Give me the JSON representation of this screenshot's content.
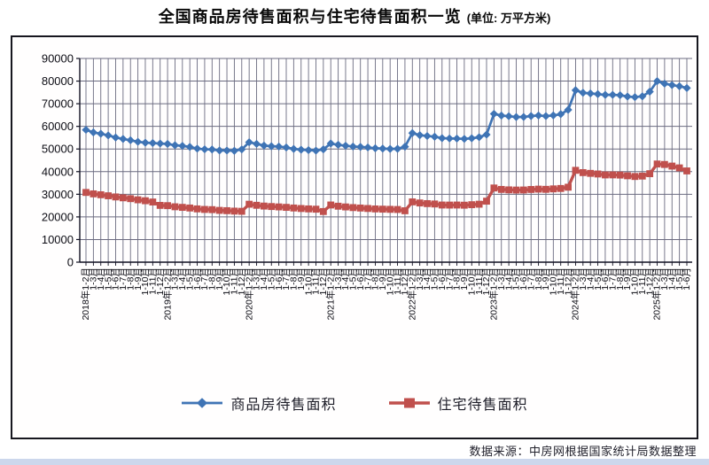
{
  "title": {
    "main": "全国商品房待售面积与住宅待售面积一览",
    "unit": "(单位: 万平方米)"
  },
  "source": "数据来源：中房网根据国家统计局数据整理",
  "colors": {
    "series1": "#3f74b5",
    "series2": "#c0504d",
    "grid": "#6b6b80",
    "axis": "#111122",
    "frame": "#17171f",
    "bottom_strip": "#ccd7ec"
  },
  "chart_data": {
    "type": "line",
    "title": "全国商品房待售面积与住宅待售面积一览",
    "unit_label": "万平方米",
    "ylim": [
      0,
      90000
    ],
    "ytick_step": 10000,
    "ytick_labels": [
      "0",
      "10000",
      "20000",
      "30000",
      "40000",
      "50000",
      "60000",
      "70000",
      "80000",
      "90000"
    ],
    "grid": true,
    "legend_position": "bottom",
    "x_labels": [
      "2018年1-2月",
      "1-3月",
      "1-4月",
      "1-5月",
      "1-6月",
      "1-7月",
      "1-8月",
      "1-9月",
      "1-10月",
      "1-11月",
      "1-12月",
      "2019年1-2月",
      "1-3月",
      "1-4月",
      "1-5月",
      "1-6月",
      "1-7月",
      "1-8月",
      "1-9月",
      "1-10月",
      "1-11月",
      "1-12月",
      "2020年1-2月",
      "1-3月",
      "1-4月",
      "1-5月",
      "1-6月",
      "1-7月",
      "1-8月",
      "1-9月",
      "1-10月",
      "1-11月",
      "1-12月",
      "2021年1-2月",
      "1-3月",
      "1-4月",
      "1-5月",
      "1-6月",
      "1-7月",
      "1-8月",
      "1-9月",
      "1-10月",
      "1-11月",
      "1-12月",
      "2022年1-2月",
      "1-3月",
      "1-4月",
      "1-5月",
      "1-6月",
      "1-7月",
      "1-8月",
      "1-9月",
      "1-10月",
      "1-11月",
      "1-12月",
      "2023年1-2月",
      "1-3月",
      "1-4月",
      "1-5月",
      "1-6月",
      "1-7月",
      "1-8月",
      "1-9月",
      "1-10月",
      "1-11月",
      "1-12月",
      "2024年1-2月",
      "1-3月",
      "1-4月",
      "1-5月",
      "1-6月",
      "1-7月",
      "1-8月",
      "1-9月",
      "1-10月",
      "1-11月",
      "1-12月",
      "2025年1-2月",
      "1-3月",
      "1-4月",
      "1-5月",
      "1-6月"
    ],
    "series": [
      {
        "name": "商品房待售面积",
        "color": "#3f74b5",
        "marker": "diamond",
        "values": [
          58468,
          57329,
          56726,
          56010,
          55083,
          54428,
          53873,
          53191,
          52789,
          52627,
          52414,
          52251,
          51646,
          51380,
          50928,
          50162,
          49876,
          49784,
          49346,
          49323,
          49221,
          49821,
          52983,
          52255,
          51512,
          51225,
          51083,
          50682,
          50052,
          49707,
          49492,
          49287,
          49850,
          52425,
          51835,
          51440,
          51087,
          50917,
          50691,
          50320,
          50191,
          50049,
          50092,
          51023,
          57026,
          56113,
          55743,
          55433,
          54784,
          54655,
          54605,
          54467,
          54734,
          55203,
          56366,
          65528,
          64770,
          64487,
          64120,
          64159,
          64564,
          64795,
          64537,
          64835,
          65385,
          67295,
          75969,
          74833,
          74553,
          74256,
          73894,
          73926,
          73783,
          73177,
          72909,
          73286,
          75327,
          79968,
          78869,
          78241,
          77726,
          76948
        ]
      },
      {
        "name": "住宅待售面积",
        "color": "#c0504d",
        "marker": "square",
        "values": [
          30806,
          30177,
          29786,
          29329,
          28827,
          28430,
          28059,
          27553,
          27142,
          26580,
          25091,
          24965,
          24474,
          24212,
          23929,
          23540,
          23297,
          23205,
          22882,
          22751,
          22560,
          22473,
          25603,
          25133,
          24786,
          24579,
          24416,
          24218,
          23934,
          23706,
          23536,
          23403,
          22379,
          25262,
          24726,
          24402,
          24115,
          23916,
          23720,
          23524,
          23420,
          23341,
          23275,
          22718,
          26637,
          26158,
          25871,
          25710,
          25249,
          25225,
          25249,
          25176,
          25389,
          25609,
          26947,
          32771,
          32140,
          31947,
          31862,
          31893,
          32119,
          32268,
          32179,
          32376,
          32561,
          33119,
          40572,
          39568,
          39238,
          38961,
          38544,
          38561,
          38478,
          38163,
          37856,
          38035,
          39088,
          43370,
          43168,
          42450,
          41661,
          40311
        ]
      }
    ]
  }
}
